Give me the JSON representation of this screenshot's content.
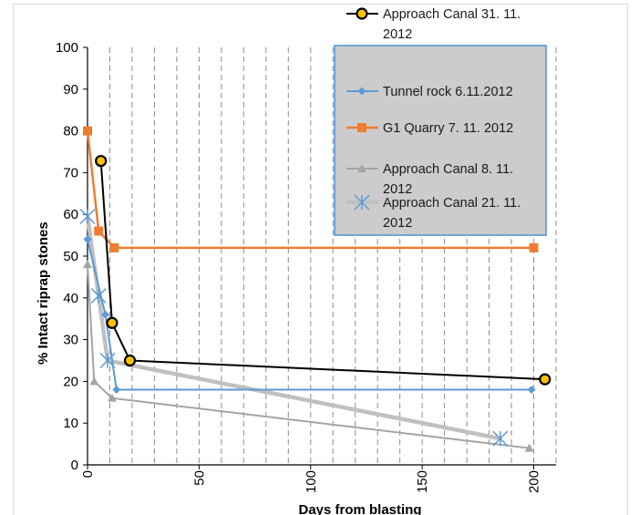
{
  "chart_data": {
    "type": "line",
    "xlabel": "Days from blasting",
    "ylabel": "% Intact riprap stones",
    "xlim": [
      0,
      210
    ],
    "ylim": [
      0,
      100
    ],
    "x_ticks": [
      0,
      50,
      100,
      150,
      200
    ],
    "y_ticks": [
      0,
      10,
      20,
      30,
      40,
      50,
      60,
      70,
      80,
      90,
      100
    ],
    "grid": "vertical dashed",
    "legend_position": "top-right",
    "series": [
      {
        "name": "Approach Canal  31. 11. 2012",
        "color": "#000000",
        "marker": "circle-gold",
        "points": [
          [
            6,
            72.8
          ],
          [
            11,
            34
          ],
          [
            19,
            25
          ],
          [
            205,
            20.5
          ]
        ]
      },
      {
        "name": "Tunnel rock  6.11.2012",
        "color": "#5b9bd5",
        "marker": "diamond",
        "points": [
          [
            0,
            54
          ],
          [
            8,
            36
          ],
          [
            13,
            18
          ],
          [
            199,
            18
          ]
        ]
      },
      {
        "name": "G1 Quarry 7. 11. 2012",
        "color": "#ed7d31",
        "marker": "square",
        "points": [
          [
            0,
            80
          ],
          [
            5,
            56
          ],
          [
            12,
            52
          ],
          [
            200,
            52
          ]
        ]
      },
      {
        "name": "Approach Canal 8. 11. 2012",
        "color": "#a5a5a5",
        "marker": "triangle",
        "points": [
          [
            0,
            48
          ],
          [
            3,
            20
          ],
          [
            11,
            16
          ],
          [
            198,
            4
          ]
        ]
      },
      {
        "name": "Approach Canal 21. 11. 2012",
        "color": "#c0c0c0",
        "marker": "star",
        "points": [
          [
            0,
            59.5
          ],
          [
            5,
            40.5
          ],
          [
            9,
            25
          ],
          [
            185,
            6.3
          ]
        ]
      }
    ]
  }
}
